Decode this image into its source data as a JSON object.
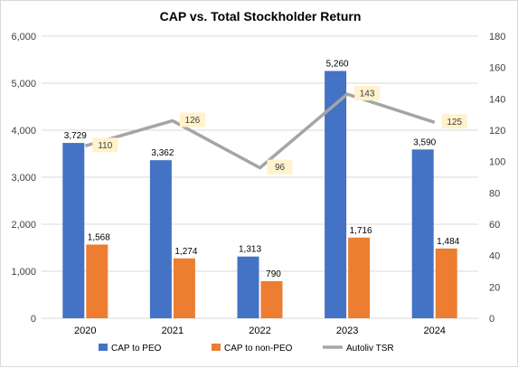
{
  "chart_data": {
    "type": "bar",
    "title": "CAP vs. Total Stockholder Return",
    "categories": [
      "2020",
      "2021",
      "2022",
      "2023",
      "2024"
    ],
    "series": [
      {
        "name": "CAP to PEO",
        "type": "bar",
        "axis": "left",
        "color": "#4472C4",
        "values": [
          3729,
          3362,
          1313,
          5260,
          3590
        ],
        "labels": [
          "3,729",
          "3,362",
          "1,313",
          "5,260",
          "3,590"
        ]
      },
      {
        "name": "CAP to non-PEO",
        "type": "bar",
        "axis": "left",
        "color": "#ED7D31",
        "values": [
          1568,
          1274,
          790,
          1716,
          1484
        ],
        "labels": [
          "1,568",
          "1,274",
          "790",
          "1,716",
          "1,484"
        ]
      },
      {
        "name": "Autoliv TSR",
        "type": "line",
        "axis": "right",
        "color": "#A5A5A5",
        "values": [
          110,
          126,
          96,
          143,
          125
        ],
        "labels": [
          "110",
          "126",
          "96",
          "143",
          "125"
        ]
      }
    ],
    "ylim": [
      0,
      6000
    ],
    "yticks": [
      "0",
      "1,000",
      "2,000",
      "3,000",
      "4,000",
      "5,000",
      "6,000"
    ],
    "y2lim": [
      0,
      180
    ],
    "y2ticks": [
      "0",
      "20",
      "40",
      "60",
      "80",
      "100",
      "120",
      "140",
      "160",
      "180"
    ],
    "grid": true,
    "legend": "bottom",
    "tsr_label_bg": "#FFF2CC"
  }
}
